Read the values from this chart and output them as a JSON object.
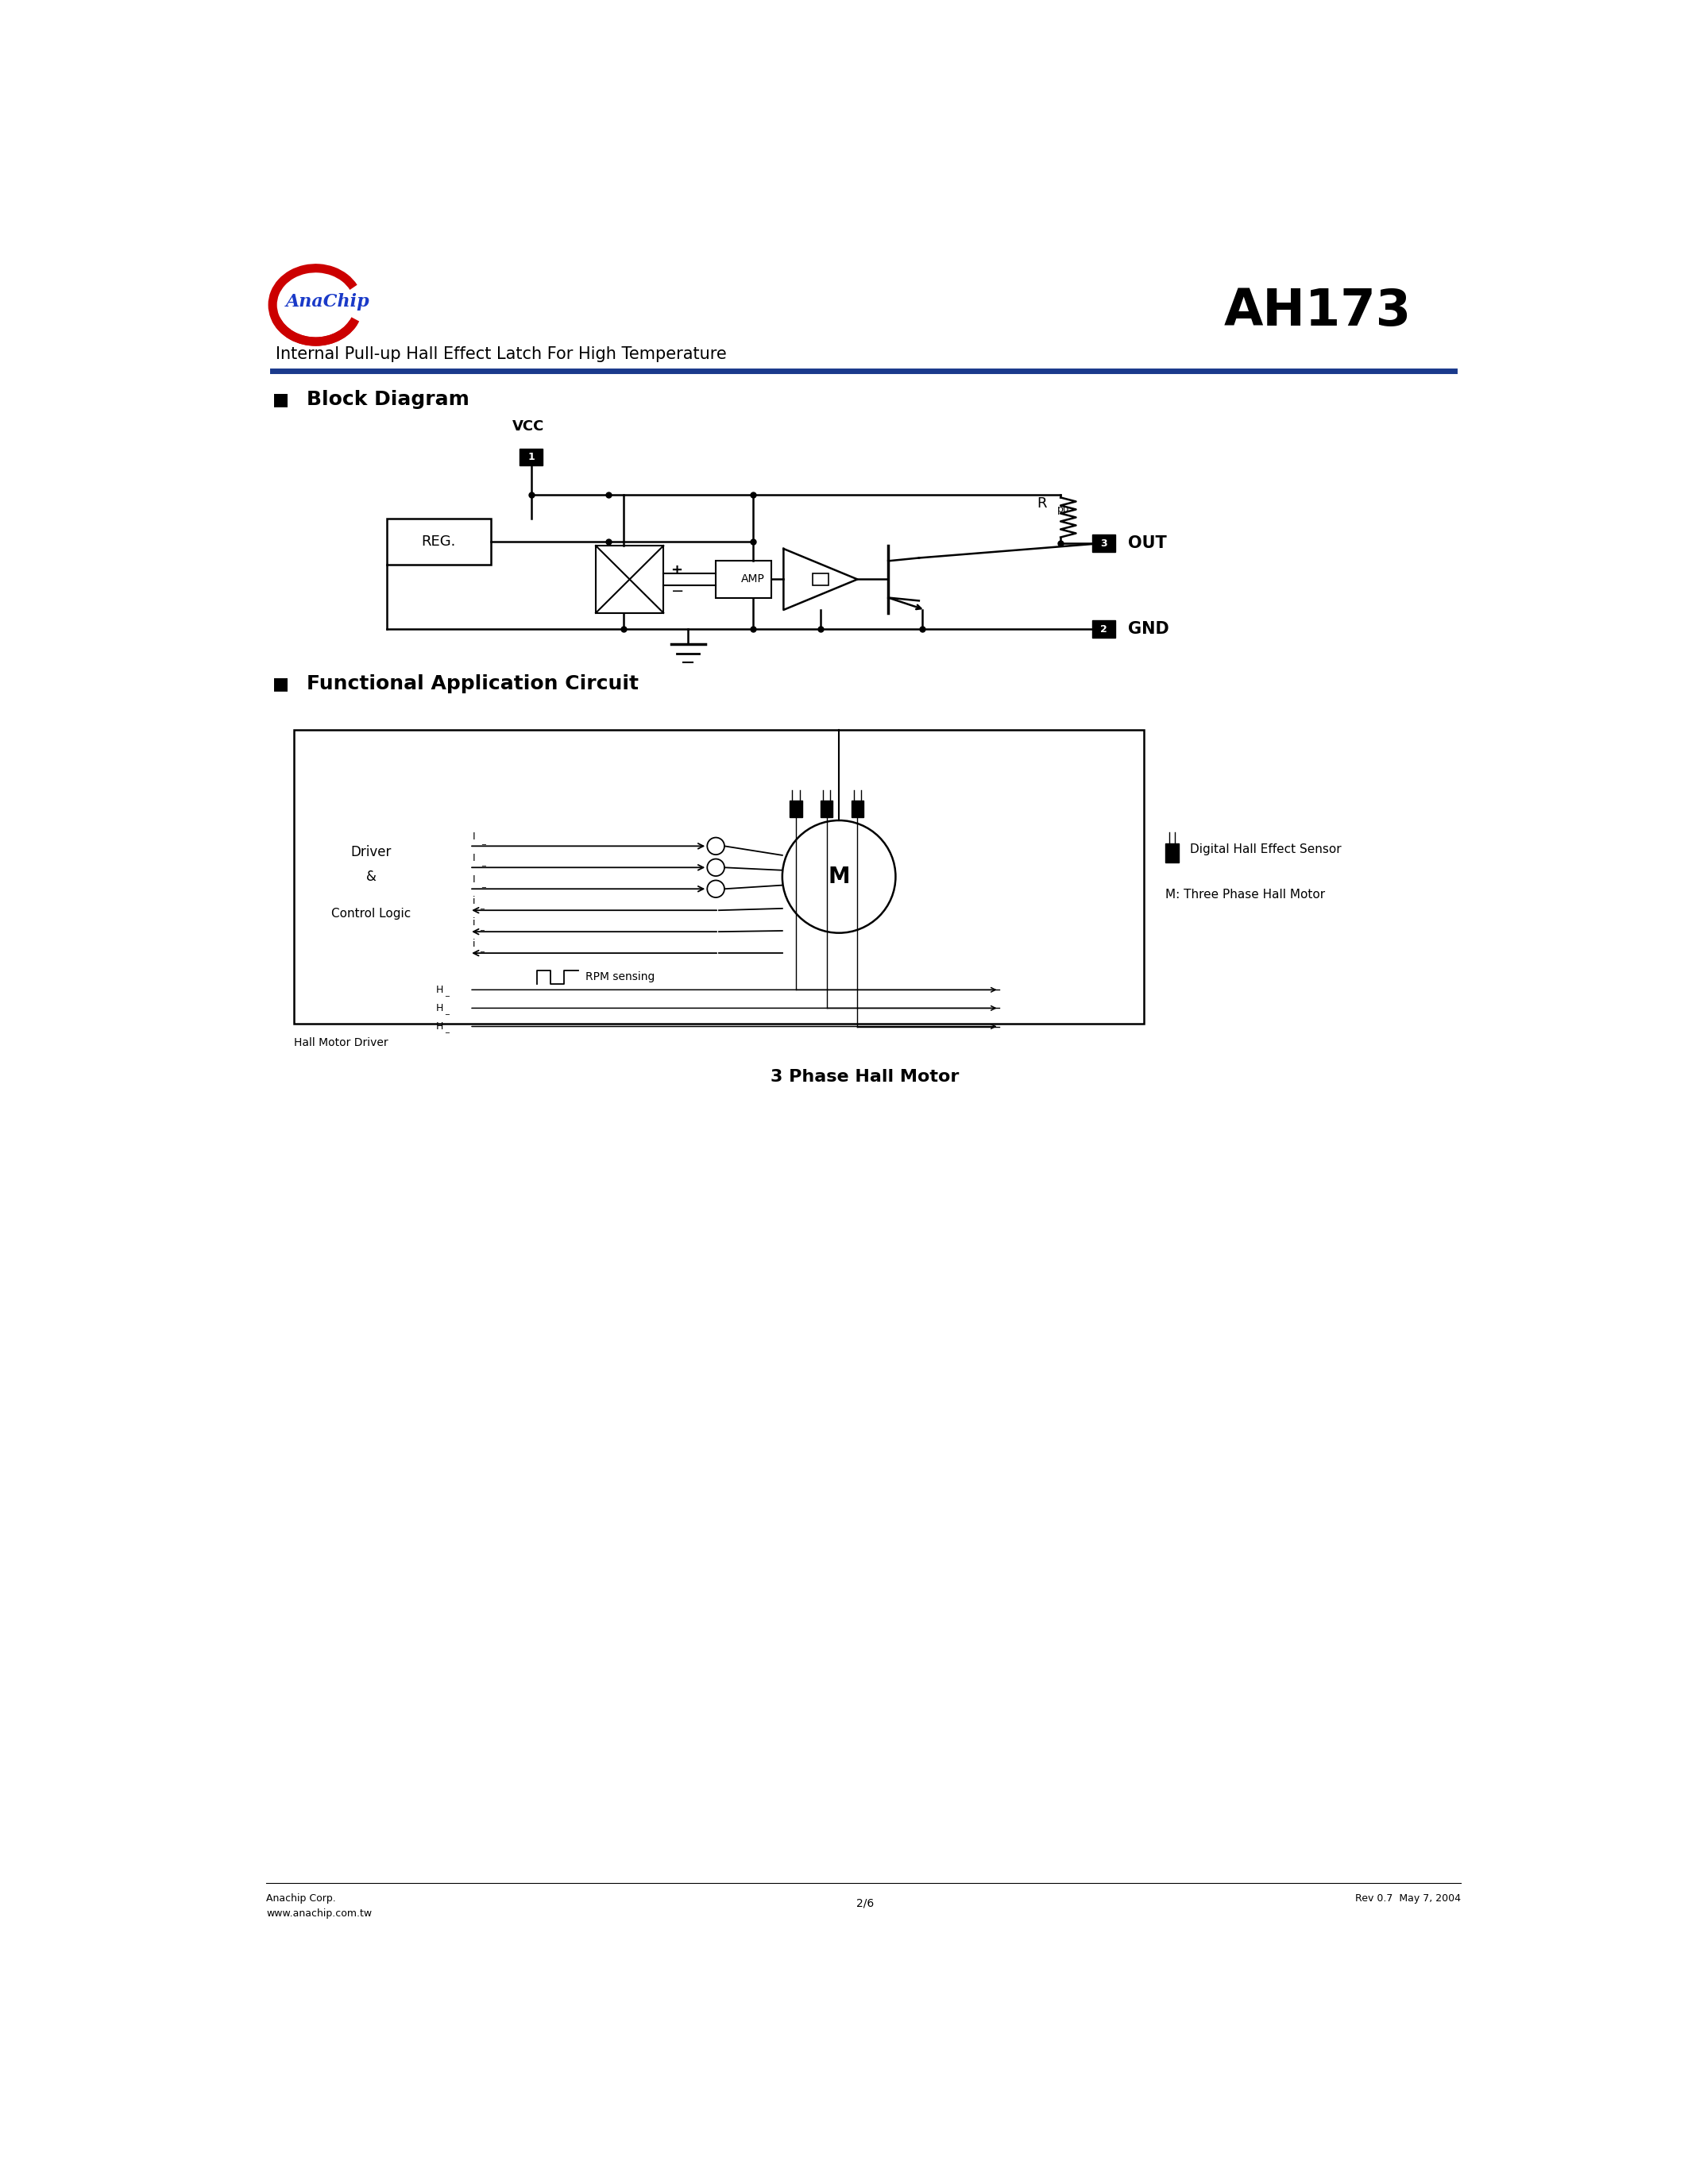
{
  "page_width": 21.25,
  "page_height": 27.5,
  "bg_color": "#ffffff",
  "header_line_color": "#1a3a8c",
  "title_text": "AH173",
  "subtitle_text": "Internal Pull-up Hall Effect Latch For High Temperature",
  "section1_title": "Block Diagram",
  "section2_title": "Functional Application Circuit",
  "footer_left1": "Anachip Corp.",
  "footer_left2": "www.anachip.com.tw",
  "footer_center": "2/6",
  "footer_right": "Rev 0.7  May 7, 2004",
  "caption2": "3 Phase Hall Motor",
  "caption_hall": "Hall Motor Driver",
  "legend_text1": "Digital Hall Effect Sensor",
  "legend_text2": "M: Three Phase Hall Motor"
}
